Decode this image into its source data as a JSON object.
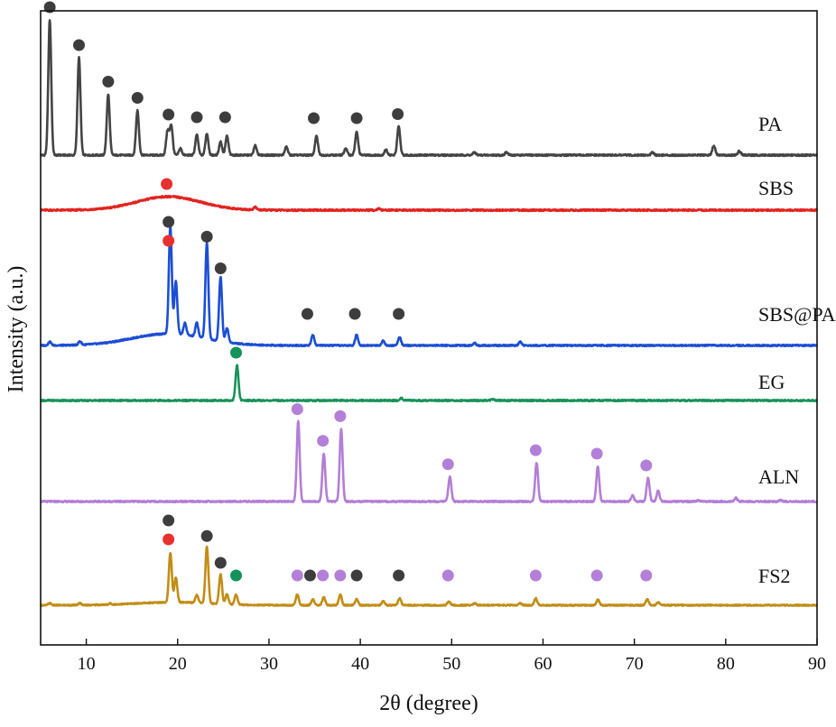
{
  "chart_data": {
    "type": "line",
    "title": "",
    "xlabel": "2θ (degree)",
    "ylabel": "Intensity (a.u.)",
    "xlim": [
      5,
      90
    ],
    "x_ticks": [
      "10",
      "20",
      "30",
      "40",
      "50",
      "60",
      "70",
      "80",
      "90"
    ],
    "grid": false,
    "legend": "inline labels at right of each trace",
    "marker_colors": {
      "black": "#3d3d3d",
      "red": "#e8302f",
      "green": "#13935a",
      "purple": "#b47fd9"
    },
    "series": [
      {
        "name": "PA",
        "label": "PA",
        "color": "#444444",
        "baseline": 0.0,
        "peaks": [
          [
            6.0,
            1.0
          ],
          [
            9.2,
            0.72
          ],
          [
            12.4,
            0.45
          ],
          [
            15.6,
            0.33
          ],
          [
            18.9,
            0.18
          ],
          [
            19.3,
            0.22
          ],
          [
            20.3,
            0.05
          ],
          [
            22.1,
            0.15
          ],
          [
            23.2,
            0.16
          ],
          [
            24.7,
            0.1
          ],
          [
            25.4,
            0.14
          ],
          [
            28.5,
            0.07
          ],
          [
            31.9,
            0.06
          ],
          [
            35.2,
            0.14
          ],
          [
            38.4,
            0.05
          ],
          [
            39.6,
            0.17
          ],
          [
            42.8,
            0.04
          ],
          [
            44.2,
            0.21
          ],
          [
            52.5,
            0.02
          ],
          [
            56.0,
            0.02
          ],
          [
            72.0,
            0.02
          ],
          [
            78.7,
            0.07
          ],
          [
            81.5,
            0.03
          ]
        ],
        "markers": [
          {
            "x": 6.0,
            "color": "black"
          },
          {
            "x": 9.2,
            "color": "black"
          },
          {
            "x": 12.4,
            "color": "black"
          },
          {
            "x": 15.6,
            "color": "black"
          },
          {
            "x": 19.0,
            "color": "black"
          },
          {
            "x": 22.1,
            "color": "black"
          },
          {
            "x": 25.2,
            "color": "black"
          },
          {
            "x": 34.9,
            "color": "black"
          },
          {
            "x": 39.6,
            "color": "black"
          },
          {
            "x": 44.1,
            "color": "black"
          }
        ]
      },
      {
        "name": "SBS",
        "label": "SBS",
        "color": "#e3231f",
        "baseline": 0.0,
        "broad_peak": [
          19.0,
          0.1,
          3.5
        ],
        "peaks": [
          [
            28.5,
            0.02
          ],
          [
            42.0,
            0.01
          ]
        ],
        "markers": [
          {
            "x": 18.8,
            "color": "red"
          }
        ]
      },
      {
        "name": "SBS@PA",
        "label": "SBS@PA",
        "color": "#1c4ed4",
        "baseline": 0.0,
        "broad_peak": [
          19.0,
          0.1,
          4.0
        ],
        "peaks": [
          [
            6.0,
            0.03
          ],
          [
            9.3,
            0.03
          ],
          [
            19.2,
            0.92
          ],
          [
            19.8,
            0.45
          ],
          [
            20.8,
            0.1
          ],
          [
            22.1,
            0.12
          ],
          [
            23.2,
            0.82
          ],
          [
            24.7,
            0.55
          ],
          [
            25.4,
            0.12
          ],
          [
            34.8,
            0.09
          ],
          [
            39.6,
            0.09
          ],
          [
            42.5,
            0.04
          ],
          [
            44.3,
            0.07
          ],
          [
            52.5,
            0.02
          ],
          [
            57.5,
            0.03
          ]
        ],
        "markers": [
          {
            "x": 19.0,
            "color": "black"
          },
          {
            "x": 19.0,
            "color": "red"
          },
          {
            "x": 23.2,
            "color": "black"
          },
          {
            "x": 24.7,
            "color": "black"
          },
          {
            "x": 34.2,
            "color": "black"
          },
          {
            "x": 39.4,
            "color": "black"
          },
          {
            "x": 44.2,
            "color": "black"
          }
        ]
      },
      {
        "name": "EG",
        "label": "EG",
        "color": "#17925a",
        "baseline": 0.0,
        "peaks": [
          [
            26.5,
            0.3
          ],
          [
            44.5,
            0.02
          ],
          [
            54.5,
            0.01
          ]
        ],
        "markers": [
          {
            "x": 26.4,
            "color": "green"
          }
        ]
      },
      {
        "name": "ALN",
        "label": "ALN",
        "color": "#b37ed6",
        "baseline": 0.0,
        "peaks": [
          [
            33.2,
            0.68
          ],
          [
            36.0,
            0.41
          ],
          [
            37.9,
            0.62
          ],
          [
            49.8,
            0.21
          ],
          [
            59.3,
            0.33
          ],
          [
            66.0,
            0.3
          ],
          [
            69.8,
            0.05
          ],
          [
            71.5,
            0.2
          ],
          [
            72.6,
            0.09
          ],
          [
            77.0,
            0.01
          ],
          [
            81.1,
            0.03
          ],
          [
            86.0,
            0.01
          ]
        ],
        "markers": [
          {
            "x": 33.1,
            "color": "purple"
          },
          {
            "x": 35.9,
            "color": "purple"
          },
          {
            "x": 37.8,
            "color": "purple"
          },
          {
            "x": 49.6,
            "color": "purple"
          },
          {
            "x": 59.2,
            "color": "purple"
          },
          {
            "x": 65.9,
            "color": "purple"
          },
          {
            "x": 71.3,
            "color": "purple"
          }
        ]
      },
      {
        "name": "FS2",
        "label": "FS2",
        "color": "#c28d16",
        "baseline": 0.0,
        "broad_peak": [
          19.5,
          0.03,
          4.0
        ],
        "peaks": [
          [
            6.0,
            0.02
          ],
          [
            9.3,
            0.02
          ],
          [
            12.6,
            0.01
          ],
          [
            19.2,
            0.5
          ],
          [
            19.8,
            0.25
          ],
          [
            22.1,
            0.08
          ],
          [
            23.2,
            0.57
          ],
          [
            24.7,
            0.3
          ],
          [
            25.4,
            0.1
          ],
          [
            26.4,
            0.1
          ],
          [
            33.1,
            0.11
          ],
          [
            34.8,
            0.06
          ],
          [
            36.0,
            0.08
          ],
          [
            37.8,
            0.11
          ],
          [
            39.6,
            0.06
          ],
          [
            42.5,
            0.04
          ],
          [
            44.3,
            0.07
          ],
          [
            49.7,
            0.04
          ],
          [
            52.5,
            0.02
          ],
          [
            57.5,
            0.02
          ],
          [
            59.2,
            0.07
          ],
          [
            66.0,
            0.06
          ],
          [
            71.4,
            0.06
          ],
          [
            72.6,
            0.03
          ]
        ],
        "markers": [
          {
            "x": 19.0,
            "color": "black"
          },
          {
            "x": 19.0,
            "color": "red"
          },
          {
            "x": 23.2,
            "color": "black"
          },
          {
            "x": 24.7,
            "color": "black"
          },
          {
            "x": 26.4,
            "color": "green"
          },
          {
            "x": 33.1,
            "color": "purple"
          },
          {
            "x": 34.5,
            "color": "black"
          },
          {
            "x": 35.9,
            "color": "purple"
          },
          {
            "x": 37.8,
            "color": "purple"
          },
          {
            "x": 39.6,
            "color": "black"
          },
          {
            "x": 44.2,
            "color": "black"
          },
          {
            "x": 49.6,
            "color": "purple"
          },
          {
            "x": 59.2,
            "color": "purple"
          },
          {
            "x": 65.9,
            "color": "purple"
          },
          {
            "x": 71.3,
            "color": "purple"
          }
        ]
      }
    ]
  }
}
